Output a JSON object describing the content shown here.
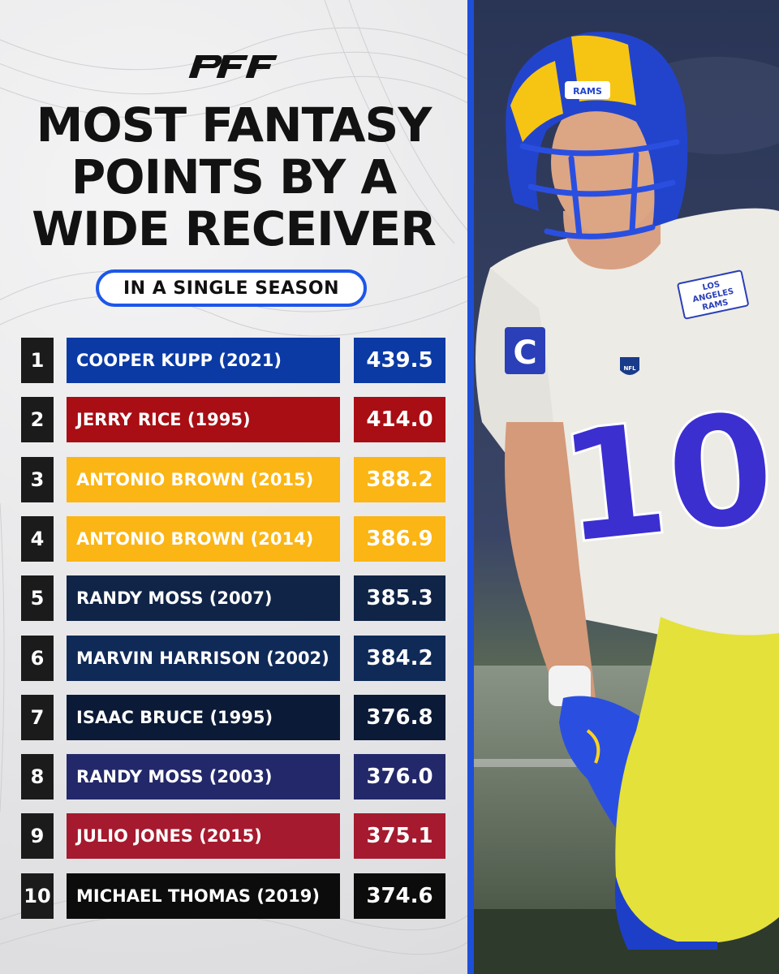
{
  "brand": {
    "logo_text": "PFF"
  },
  "title_lines": [
    "MOST FANTASY",
    "POINTS BY A",
    "WIDE RECEIVER"
  ],
  "subtitle": "IN A SINGLE SEASON",
  "colors": {
    "accent_blue": "#1d56e8",
    "rank_bg": "#1b1b1b"
  },
  "rows": [
    {
      "rank": "1",
      "name": "COOPER KUPP (2021)",
      "points": "439.5",
      "color": "#0b3aa4"
    },
    {
      "rank": "2",
      "name": "JERRY RICE (1995)",
      "points": "414.0",
      "color": "#a80e14"
    },
    {
      "rank": "3",
      "name": "ANTONIO BROWN (2015)",
      "points": "388.2",
      "color": "#fbb514"
    },
    {
      "rank": "4",
      "name": "ANTONIO BROWN (2014)",
      "points": "386.9",
      "color": "#fbb514"
    },
    {
      "rank": "5",
      "name": "RANDY MOSS (2007)",
      "points": "385.3",
      "color": "#0f2447"
    },
    {
      "rank": "6",
      "name": "MARVIN HARRISON (2002)",
      "points": "384.2",
      "color": "#102a58"
    },
    {
      "rank": "7",
      "name": "ISAAC BRUCE (1995)",
      "points": "376.8",
      "color": "#0b1a36"
    },
    {
      "rank": "8",
      "name": "RANDY MOSS (2003)",
      "points": "376.0",
      "color": "#23286a"
    },
    {
      "rank": "9",
      "name": "JULIO JONES (2015)",
      "points": "375.1",
      "color": "#a51a2e"
    },
    {
      "rank": "10",
      "name": "MICHAEL THOMAS (2019)",
      "points": "374.6",
      "color": "#0c0c0c"
    }
  ],
  "photo": {
    "jersey_number": "10",
    "captain_patch": "C",
    "helmet_text": "RAMS",
    "chest_patch": [
      "LOS",
      "ANGELES",
      "RAMS"
    ],
    "shield_text": "NFL"
  }
}
